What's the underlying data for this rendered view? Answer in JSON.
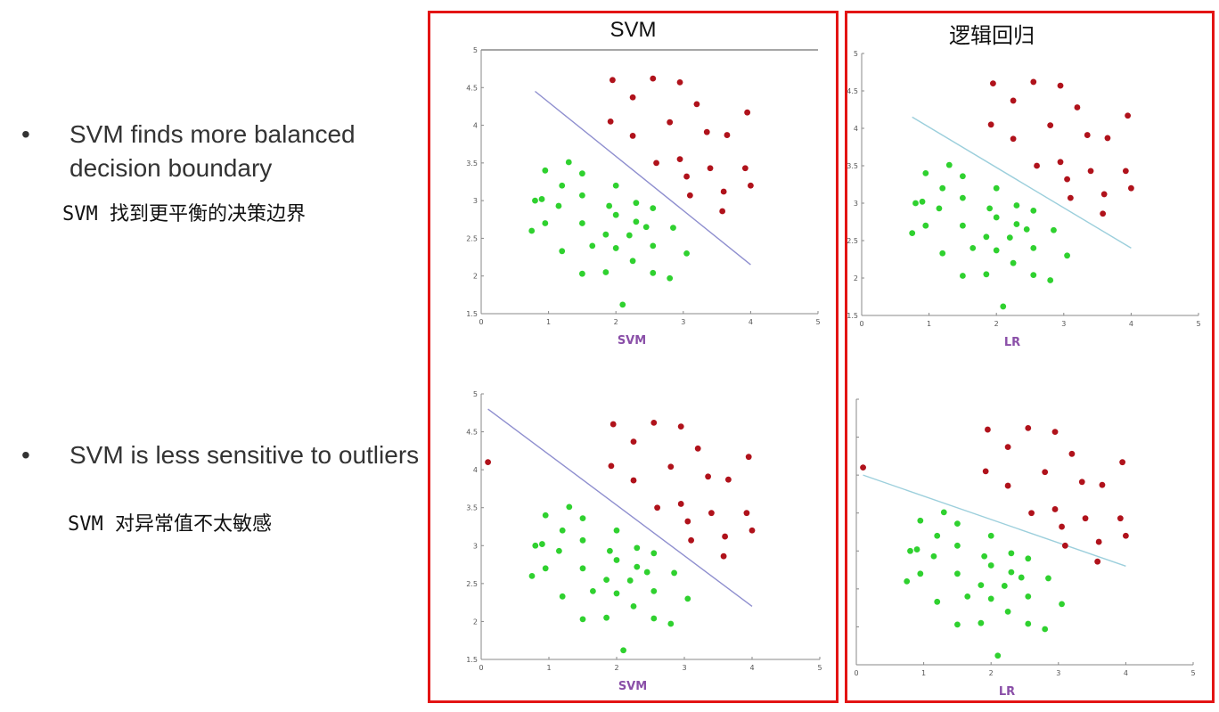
{
  "bullets": [
    {
      "marker": "•",
      "text": "SVM finds more balanced decision boundary",
      "translation": "SVM 找到更平衡的决策边界"
    },
    {
      "marker": "•",
      "text": "SVM is less sensitive to outliers",
      "translation": "SVM 对异常值不太敏感"
    }
  ],
  "panels": [
    {
      "title": "SVM"
    },
    {
      "title": "逻辑回归"
    }
  ],
  "colors": {
    "border": "#e31414",
    "class_red": "#b0121b",
    "class_green": "#2fd12f",
    "boundary_svm": "#8f8fcf",
    "boundary_lr": "#9ccfdc",
    "axis_label": "#8a4fa8"
  },
  "chart_data": [
    {
      "type": "scatter",
      "xlabel": "SVM",
      "xlim": [
        0,
        5
      ],
      "ylim": [
        1.5,
        5
      ],
      "xticks": [
        "0",
        "1",
        "2",
        "3",
        "4",
        "5"
      ],
      "yticks": [
        "1.5",
        "2",
        "2.5",
        "3",
        "3.5",
        "4",
        "4.5",
        "5"
      ],
      "series": [
        {
          "points": [
            [
              1.95,
              4.6
            ],
            [
              2.55,
              4.62
            ],
            [
              2.95,
              4.57
            ],
            [
              2.25,
              4.37
            ],
            [
              3.2,
              4.28
            ],
            [
              1.92,
              4.05
            ],
            [
              2.8,
              4.04
            ],
            [
              3.95,
              4.17
            ],
            [
              3.35,
              3.91
            ],
            [
              3.65,
              3.87
            ],
            [
              2.25,
              3.86
            ],
            [
              2.6,
              3.5
            ],
            [
              2.95,
              3.55
            ],
            [
              3.05,
              3.32
            ],
            [
              3.4,
              3.43
            ],
            [
              3.92,
              3.43
            ],
            [
              3.6,
              3.12
            ],
            [
              4.0,
              3.2
            ],
            [
              3.1,
              3.07
            ],
            [
              3.58,
              2.86
            ]
          ]
        },
        {
          "points": [
            [
              1.3,
              3.51
            ],
            [
              0.95,
              3.4
            ],
            [
              1.5,
              3.36
            ],
            [
              1.2,
              3.2
            ],
            [
              2.0,
              3.2
            ],
            [
              1.5,
              3.07
            ],
            [
              0.8,
              3.0
            ],
            [
              0.9,
              3.02
            ],
            [
              1.15,
              2.93
            ],
            [
              1.9,
              2.93
            ],
            [
              2.3,
              2.97
            ],
            [
              2.55,
              2.9
            ],
            [
              2.0,
              2.81
            ],
            [
              0.95,
              2.7
            ],
            [
              1.5,
              2.7
            ],
            [
              2.3,
              2.72
            ],
            [
              2.45,
              2.65
            ],
            [
              2.85,
              2.64
            ],
            [
              0.75,
              2.6
            ],
            [
              1.85,
              2.55
            ],
            [
              2.2,
              2.54
            ],
            [
              1.65,
              2.4
            ],
            [
              2.0,
              2.37
            ],
            [
              2.55,
              2.4
            ],
            [
              1.2,
              2.33
            ],
            [
              3.05,
              2.3
            ],
            [
              2.25,
              2.2
            ],
            [
              1.5,
              2.03
            ],
            [
              1.85,
              2.05
            ],
            [
              2.55,
              2.04
            ],
            [
              2.8,
              1.97
            ],
            [
              2.1,
              1.62
            ]
          ]
        }
      ],
      "boundary": [
        [
          0.8,
          4.45
        ],
        [
          4.0,
          2.15
        ]
      ]
    },
    {
      "type": "scatter",
      "xlabel": "LR",
      "xlim": [
        0,
        5
      ],
      "ylim": [
        1.5,
        5
      ],
      "xticks": [
        "0",
        "1",
        "2",
        "3",
        "4",
        "5"
      ],
      "yticks": [
        "1.5",
        "2",
        "2.5",
        "3",
        "3.5",
        "4",
        "4.5",
        "5"
      ],
      "series": [
        {
          "points": [
            [
              1.95,
              4.6
            ],
            [
              2.55,
              4.62
            ],
            [
              2.95,
              4.57
            ],
            [
              2.25,
              4.37
            ],
            [
              3.2,
              4.28
            ],
            [
              1.92,
              4.05
            ],
            [
              2.8,
              4.04
            ],
            [
              3.95,
              4.17
            ],
            [
              3.35,
              3.91
            ],
            [
              3.65,
              3.87
            ],
            [
              2.25,
              3.86
            ],
            [
              2.6,
              3.5
            ],
            [
              2.95,
              3.55
            ],
            [
              3.05,
              3.32
            ],
            [
              3.4,
              3.43
            ],
            [
              3.92,
              3.43
            ],
            [
              3.6,
              3.12
            ],
            [
              4.0,
              3.2
            ],
            [
              3.1,
              3.07
            ],
            [
              3.58,
              2.86
            ]
          ]
        },
        {
          "points": [
            [
              1.3,
              3.51
            ],
            [
              0.95,
              3.4
            ],
            [
              1.5,
              3.36
            ],
            [
              1.2,
              3.2
            ],
            [
              2.0,
              3.2
            ],
            [
              1.5,
              3.07
            ],
            [
              0.8,
              3.0
            ],
            [
              0.9,
              3.02
            ],
            [
              1.15,
              2.93
            ],
            [
              1.9,
              2.93
            ],
            [
              2.3,
              2.97
            ],
            [
              2.55,
              2.9
            ],
            [
              2.0,
              2.81
            ],
            [
              0.95,
              2.7
            ],
            [
              1.5,
              2.7
            ],
            [
              2.3,
              2.72
            ],
            [
              2.45,
              2.65
            ],
            [
              2.85,
              2.64
            ],
            [
              0.75,
              2.6
            ],
            [
              1.85,
              2.55
            ],
            [
              2.2,
              2.54
            ],
            [
              1.65,
              2.4
            ],
            [
              2.0,
              2.37
            ],
            [
              2.55,
              2.4
            ],
            [
              1.2,
              2.33
            ],
            [
              3.05,
              2.3
            ],
            [
              2.25,
              2.2
            ],
            [
              1.5,
              2.03
            ],
            [
              1.85,
              2.05
            ],
            [
              2.55,
              2.04
            ],
            [
              2.8,
              1.97
            ],
            [
              2.1,
              1.62
            ]
          ]
        }
      ],
      "boundary": [
        [
          0.75,
          4.15
        ],
        [
          4.0,
          2.4
        ]
      ]
    },
    {
      "type": "scatter",
      "xlabel": "SVM",
      "xlim": [
        0,
        5
      ],
      "ylim": [
        1.5,
        5
      ],
      "xticks": [
        "0",
        "1",
        "2",
        "3",
        "4",
        "5"
      ],
      "yticks": [
        "1.5",
        "2",
        "2.5",
        "3",
        "3.5",
        "4",
        "4.5",
        "5"
      ],
      "series": [
        {
          "points": [
            [
              1.95,
              4.6
            ],
            [
              2.55,
              4.62
            ],
            [
              2.95,
              4.57
            ],
            [
              2.25,
              4.37
            ],
            [
              3.2,
              4.28
            ],
            [
              1.92,
              4.05
            ],
            [
              2.8,
              4.04
            ],
            [
              3.95,
              4.17
            ],
            [
              3.35,
              3.91
            ],
            [
              3.65,
              3.87
            ],
            [
              2.25,
              3.86
            ],
            [
              2.6,
              3.5
            ],
            [
              2.95,
              3.55
            ],
            [
              3.05,
              3.32
            ],
            [
              3.4,
              3.43
            ],
            [
              3.92,
              3.43
            ],
            [
              3.6,
              3.12
            ],
            [
              4.0,
              3.2
            ],
            [
              3.1,
              3.07
            ],
            [
              3.58,
              2.86
            ],
            [
              0.1,
              4.1
            ]
          ]
        },
        {
          "points": [
            [
              1.3,
              3.51
            ],
            [
              0.95,
              3.4
            ],
            [
              1.5,
              3.36
            ],
            [
              1.2,
              3.2
            ],
            [
              2.0,
              3.2
            ],
            [
              1.5,
              3.07
            ],
            [
              0.8,
              3.0
            ],
            [
              0.9,
              3.02
            ],
            [
              1.15,
              2.93
            ],
            [
              1.9,
              2.93
            ],
            [
              2.3,
              2.97
            ],
            [
              2.55,
              2.9
            ],
            [
              2.0,
              2.81
            ],
            [
              0.95,
              2.7
            ],
            [
              1.5,
              2.7
            ],
            [
              2.3,
              2.72
            ],
            [
              2.45,
              2.65
            ],
            [
              2.85,
              2.64
            ],
            [
              0.75,
              2.6
            ],
            [
              1.85,
              2.55
            ],
            [
              2.2,
              2.54
            ],
            [
              1.65,
              2.4
            ],
            [
              2.0,
              2.37
            ],
            [
              2.55,
              2.4
            ],
            [
              1.2,
              2.33
            ],
            [
              3.05,
              2.3
            ],
            [
              2.25,
              2.2
            ],
            [
              1.5,
              2.03
            ],
            [
              1.85,
              2.05
            ],
            [
              2.55,
              2.04
            ],
            [
              2.8,
              1.97
            ],
            [
              2.1,
              1.62
            ]
          ]
        }
      ],
      "boundary": [
        [
          0.1,
          4.8
        ],
        [
          4.0,
          2.2
        ]
      ]
    },
    {
      "type": "scatter",
      "xlabel": "LR",
      "xlim": [
        0,
        5
      ],
      "ylim": [
        1.5,
        5
      ],
      "xticks": [
        "0",
        "1",
        "2",
        "3",
        "4",
        "5"
      ],
      "yticks": [],
      "series": [
        {
          "points": [
            [
              1.95,
              4.6
            ],
            [
              2.55,
              4.62
            ],
            [
              2.95,
              4.57
            ],
            [
              2.25,
              4.37
            ],
            [
              3.2,
              4.28
            ],
            [
              1.92,
              4.05
            ],
            [
              2.8,
              4.04
            ],
            [
              3.95,
              4.17
            ],
            [
              3.35,
              3.91
            ],
            [
              3.65,
              3.87
            ],
            [
              2.25,
              3.86
            ],
            [
              2.6,
              3.5
            ],
            [
              2.95,
              3.55
            ],
            [
              3.05,
              3.32
            ],
            [
              3.4,
              3.43
            ],
            [
              3.92,
              3.43
            ],
            [
              3.6,
              3.12
            ],
            [
              4.0,
              3.2
            ],
            [
              3.1,
              3.07
            ],
            [
              3.58,
              2.86
            ],
            [
              0.1,
              4.1
            ]
          ]
        },
        {
          "points": [
            [
              1.3,
              3.51
            ],
            [
              0.95,
              3.4
            ],
            [
              1.5,
              3.36
            ],
            [
              1.2,
              3.2
            ],
            [
              2.0,
              3.2
            ],
            [
              1.5,
              3.07
            ],
            [
              0.8,
              3.0
            ],
            [
              0.9,
              3.02
            ],
            [
              1.15,
              2.93
            ],
            [
              1.9,
              2.93
            ],
            [
              2.3,
              2.97
            ],
            [
              2.55,
              2.9
            ],
            [
              2.0,
              2.81
            ],
            [
              0.95,
              2.7
            ],
            [
              1.5,
              2.7
            ],
            [
              2.3,
              2.72
            ],
            [
              2.45,
              2.65
            ],
            [
              2.85,
              2.64
            ],
            [
              0.75,
              2.6
            ],
            [
              1.85,
              2.55
            ],
            [
              2.2,
              2.54
            ],
            [
              1.65,
              2.4
            ],
            [
              2.0,
              2.37
            ],
            [
              2.55,
              2.4
            ],
            [
              1.2,
              2.33
            ],
            [
              3.05,
              2.3
            ],
            [
              2.25,
              2.2
            ],
            [
              1.5,
              2.03
            ],
            [
              1.85,
              2.05
            ],
            [
              2.55,
              2.04
            ],
            [
              2.8,
              1.97
            ],
            [
              2.1,
              1.62
            ]
          ]
        }
      ],
      "boundary": [
        [
          0.1,
          4.0
        ],
        [
          4.0,
          2.8
        ]
      ]
    }
  ]
}
